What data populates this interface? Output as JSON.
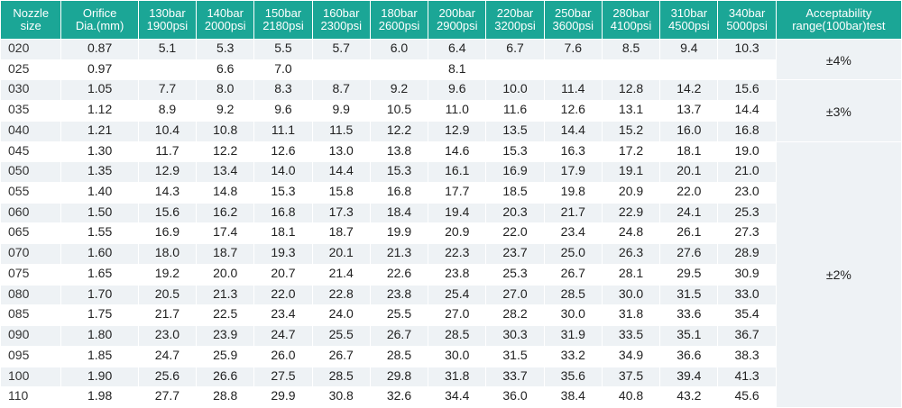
{
  "headers": {
    "nozzle": [
      "Nozzle",
      "size"
    ],
    "orifice": [
      "Orifice",
      "Dia.(mm)"
    ],
    "pressures": [
      [
        "130bar",
        "1900psi"
      ],
      [
        "140bar",
        "2000psi"
      ],
      [
        "150bar",
        "2180psi"
      ],
      [
        "160bar",
        "2300psi"
      ],
      [
        "180bar",
        "2600psi"
      ],
      [
        "200bar",
        "2900psi"
      ],
      [
        "220bar",
        "3200psi"
      ],
      [
        "250bar",
        "3600psi"
      ],
      [
        "280bar",
        "4100psi"
      ],
      [
        "310bar",
        "4500psi"
      ],
      [
        "340bar",
        "5000psi"
      ]
    ],
    "acceptability": [
      "Acceptability",
      "range(100bar)test"
    ]
  },
  "rows": [
    {
      "size": "020",
      "dia": "0.87",
      "vals": [
        "5.1",
        "5.3",
        "5.5",
        "5.7",
        "6.0",
        "6.4",
        "6.7",
        "7.6",
        "8.5",
        "9.4",
        "10.3"
      ]
    },
    {
      "size": "025",
      "dia": "0.97",
      "vals": [
        "",
        "6.6",
        "7.0",
        "",
        "",
        "8.1",
        "",
        "",
        "",
        "",
        ""
      ]
    },
    {
      "size": "030",
      "dia": "1.05",
      "vals": [
        "7.7",
        "8.0",
        "8.3",
        "8.7",
        "9.2",
        "9.6",
        "10.0",
        "11.4",
        "12.8",
        "14.2",
        "15.6"
      ]
    },
    {
      "size": "035",
      "dia": "1.12",
      "vals": [
        "8.9",
        "9.2",
        "9.6",
        "9.9",
        "10.5",
        "11.0",
        "11.6",
        "12.6",
        "13.1",
        "13.7",
        "14.4"
      ]
    },
    {
      "size": "040",
      "dia": "1.21",
      "vals": [
        "10.4",
        "10.8",
        "11.1",
        "11.5",
        "12.2",
        "12.9",
        "13.5",
        "14.4",
        "15.2",
        "16.0",
        "16.8"
      ]
    },
    {
      "size": "045",
      "dia": "1.30",
      "vals": [
        "11.7",
        "12.2",
        "12.6",
        "13.0",
        "13.8",
        "14.6",
        "15.3",
        "16.3",
        "17.2",
        "18.1",
        "19.0"
      ]
    },
    {
      "size": "050",
      "dia": "1.35",
      "vals": [
        "12.9",
        "13.4",
        "14.0",
        "14.4",
        "15.3",
        "16.1",
        "16.9",
        "17.9",
        "19.1",
        "20.1",
        "21.0"
      ]
    },
    {
      "size": "055",
      "dia": "1.40",
      "vals": [
        "14.3",
        "14.8",
        "15.3",
        "15.8",
        "16.8",
        "17.7",
        "18.5",
        "19.8",
        "20.9",
        "22.0",
        "23.0"
      ]
    },
    {
      "size": "060",
      "dia": "1.50",
      "vals": [
        "15.6",
        "16.2",
        "16.8",
        "17.3",
        "18.4",
        "19.4",
        "20.3",
        "21.7",
        "22.9",
        "24.1",
        "25.3"
      ]
    },
    {
      "size": "065",
      "dia": "1.55",
      "vals": [
        "16.9",
        "17.4",
        "18.1",
        "18.7",
        "19.9",
        "20.9",
        "22.0",
        "23.4",
        "24.8",
        "26.1",
        "27.3"
      ]
    },
    {
      "size": "070",
      "dia": "1.60",
      "vals": [
        "18.0",
        "18.7",
        "19.3",
        "20.1",
        "21.3",
        "22.3",
        "23.7",
        "25.0",
        "26.3",
        "27.6",
        "28.9"
      ]
    },
    {
      "size": "075",
      "dia": "1.65",
      "vals": [
        "19.2",
        "20.0",
        "20.7",
        "21.4",
        "22.6",
        "23.8",
        "25.3",
        "26.7",
        "28.1",
        "29.5",
        "30.9"
      ]
    },
    {
      "size": "080",
      "dia": "1.70",
      "vals": [
        "20.5",
        "21.3",
        "22.0",
        "22.8",
        "23.8",
        "25.4",
        "27.0",
        "28.5",
        "30.0",
        "31.5",
        "33.0"
      ]
    },
    {
      "size": "085",
      "dia": "1.75",
      "vals": [
        "21.7",
        "22.5",
        "23.4",
        "24.0",
        "25.5",
        "27.0",
        "28.2",
        "30.0",
        "31.8",
        "33.6",
        "35.4"
      ]
    },
    {
      "size": "090",
      "dia": "1.80",
      "vals": [
        "23.0",
        "23.9",
        "24.7",
        "25.5",
        "26.7",
        "28.5",
        "30.3",
        "31.9",
        "33.5",
        "35.1",
        "36.7"
      ]
    },
    {
      "size": "095",
      "dia": "1.85",
      "vals": [
        "24.7",
        "25.9",
        "26.0",
        "26.7",
        "28.5",
        "30.0",
        "31.5",
        "33.2",
        "34.9",
        "36.6",
        "38.3"
      ]
    },
    {
      "size": "100",
      "dia": "1.90",
      "vals": [
        "25.6",
        "26.6",
        "27.5",
        "28.5",
        "29.8",
        "31.8",
        "33.7",
        "35.6",
        "37.5",
        "39.4",
        "41.3"
      ]
    },
    {
      "size": "110",
      "dia": "1.98",
      "vals": [
        "27.7",
        "28.8",
        "29.9",
        "30.8",
        "32.6",
        "34.4",
        "36.0",
        "38.4",
        "40.8",
        "43.2",
        "45.6"
      ]
    }
  ],
  "ranges": [
    {
      "label": "±4%",
      "start": 0,
      "span": 2
    },
    {
      "label": "±3%",
      "start": 2,
      "span": 3
    },
    {
      "label": "±2%",
      "start": 5,
      "span": 13
    }
  ],
  "colors": {
    "header": "#1ba696",
    "stripe": "#eef2f5"
  }
}
